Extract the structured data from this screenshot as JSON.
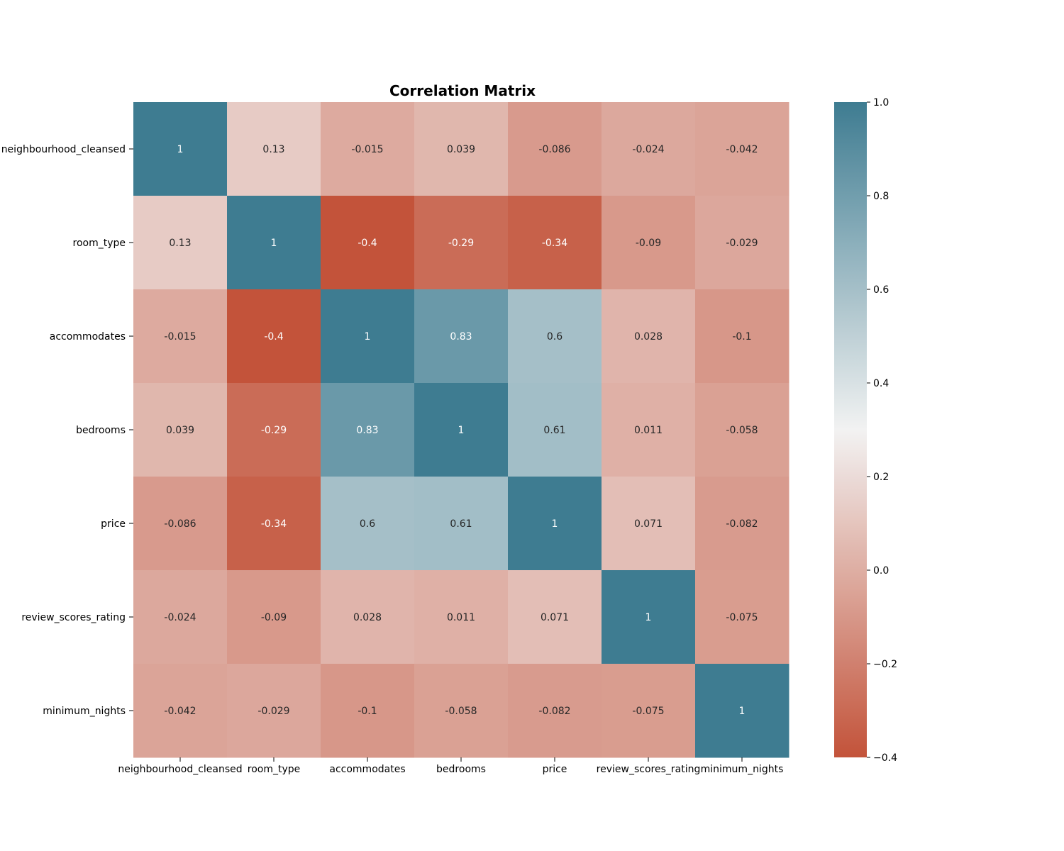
{
  "chart_data": {
    "type": "heatmap",
    "title": "Correlation Matrix",
    "xlabel": "",
    "ylabel": "",
    "x_labels": [
      "neighbourhood_cleansed",
      "room_type",
      "accommodates",
      "bedrooms",
      "price",
      "review_scores_rating",
      "minimum_nights"
    ],
    "y_labels": [
      "neighbourhood_cleansed",
      "room_type",
      "accommodates",
      "bedrooms",
      "price",
      "review_scores_rating",
      "minimum_nights"
    ],
    "values": [
      [
        1,
        0.13,
        -0.015,
        0.039,
        -0.086,
        -0.024,
        -0.042
      ],
      [
        0.13,
        1,
        -0.4,
        -0.29,
        -0.34,
        -0.09,
        -0.029
      ],
      [
        -0.015,
        -0.4,
        1,
        0.83,
        0.6,
        0.028,
        -0.1
      ],
      [
        0.039,
        -0.29,
        0.83,
        1,
        0.61,
        0.011,
        -0.058
      ],
      [
        -0.086,
        -0.34,
        0.6,
        0.61,
        1,
        0.071,
        -0.082
      ],
      [
        -0.024,
        -0.09,
        0.028,
        0.011,
        0.071,
        1,
        -0.075
      ],
      [
        -0.042,
        -0.029,
        -0.1,
        -0.058,
        -0.082,
        -0.075,
        1
      ]
    ],
    "annotations": [
      [
        "1",
        "0.13",
        "-0.015",
        "0.039",
        "-0.086",
        "-0.024",
        "-0.042"
      ],
      [
        "0.13",
        "1",
        "-0.4",
        "-0.29",
        "-0.34",
        "-0.09",
        "-0.029"
      ],
      [
        "-0.015",
        "-0.4",
        "1",
        "0.83",
        "0.6",
        "0.028",
        "-0.1"
      ],
      [
        "0.039",
        "-0.29",
        "0.83",
        "1",
        "0.61",
        "0.011",
        "-0.058"
      ],
      [
        "-0.086",
        "-0.34",
        "0.6",
        "0.61",
        "1",
        "0.071",
        "-0.082"
      ],
      [
        "-0.024",
        "-0.09",
        "0.028",
        "0.011",
        "0.071",
        "1",
        "-0.075"
      ],
      [
        "-0.042",
        "-0.029",
        "-0.1",
        "-0.058",
        "-0.082",
        "-0.075",
        "1"
      ]
    ],
    "colorbar": {
      "min": -0.4,
      "max": 1.0,
      "ticks": [
        -0.4,
        -0.2,
        0.0,
        0.2,
        0.4,
        0.6,
        0.8,
        1.0
      ],
      "tick_labels": [
        "−0.4",
        "−0.2",
        "0.0",
        "0.2",
        "0.4",
        "0.6",
        "0.8",
        "1.0"
      ]
    },
    "colormap": {
      "low": "#c3533a",
      "mid": "#f2f2f2",
      "high": "#3e7c91",
      "midpoint": 0.3
    },
    "grid": false,
    "legend": "colorbar-right"
  }
}
